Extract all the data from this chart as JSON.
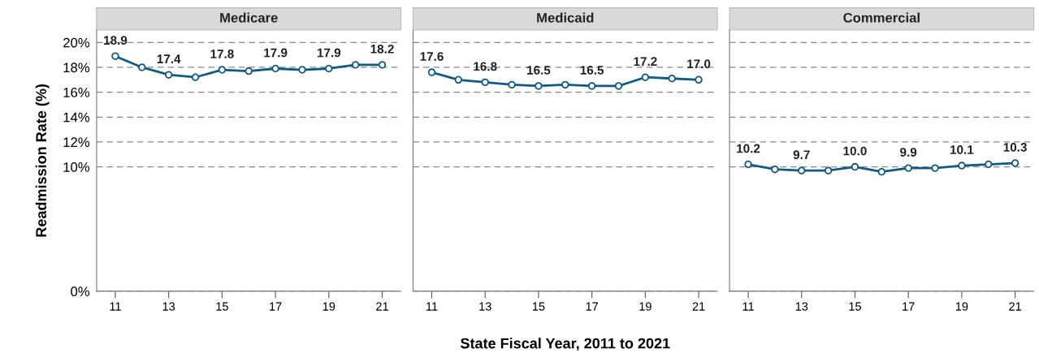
{
  "chart_data": [
    {
      "type": "line",
      "title": "Medicare",
      "ylabel": "Readmission Rate (%)",
      "x": [
        11,
        12,
        13,
        14,
        15,
        16,
        17,
        18,
        19,
        20,
        21
      ],
      "series": [
        {
          "color": "#0f5a87",
          "values": [
            18.9,
            18.0,
            17.4,
            17.2,
            17.8,
            17.7,
            17.9,
            17.8,
            17.9,
            18.2,
            18.2
          ],
          "value_labels": [
            "18.9",
            null,
            "17.4",
            null,
            "17.8",
            null,
            "17.9",
            null,
            "17.9",
            null,
            "18.2"
          ]
        }
      ],
      "xlim": [
        10.3,
        21.7
      ],
      "xticks": [
        11,
        13,
        15,
        17,
        19,
        21
      ],
      "ylim": [
        0,
        21
      ],
      "yticks": [
        {
          "value": 0,
          "label": "0%"
        },
        {
          "value": 10,
          "label": "10%"
        },
        {
          "value": 12,
          "label": "12%"
        },
        {
          "value": 14,
          "label": "14%"
        },
        {
          "value": 16,
          "label": "16%"
        },
        {
          "value": 18,
          "label": "18%"
        },
        {
          "value": 20,
          "label": "20%"
        }
      ],
      "grid": "y",
      "marker": "circle",
      "line_style": "solid",
      "legend": false
    },
    {
      "type": "line",
      "title": "Medicaid",
      "xlabel": "State Fiscal Year, 2011 to 2021",
      "x": [
        11,
        12,
        13,
        14,
        15,
        16,
        17,
        18,
        19,
        20,
        21
      ],
      "series": [
        {
          "color": "#0f5a87",
          "values": [
            17.6,
            17.0,
            16.8,
            16.6,
            16.5,
            16.6,
            16.5,
            16.5,
            17.2,
            17.1,
            17.0
          ],
          "value_labels": [
            "17.6",
            null,
            "16.8",
            null,
            "16.5",
            null,
            "16.5",
            null,
            "17.2",
            null,
            "17.0"
          ]
        }
      ],
      "xlim": [
        10.3,
        21.7
      ],
      "xticks": [
        11,
        13,
        15,
        17,
        19,
        21
      ],
      "ylim": [
        0,
        21
      ],
      "yticks": [
        0,
        10,
        12,
        14,
        16,
        18,
        20
      ],
      "tick_labels": "x",
      "grid": "y",
      "marker": "circle",
      "line_style": "solid",
      "legend": false
    },
    {
      "type": "line",
      "title": "Commercial",
      "x": [
        11,
        12,
        13,
        14,
        15,
        16,
        17,
        18,
        19,
        20,
        21
      ],
      "series": [
        {
          "color": "#0f5a87",
          "values": [
            10.2,
            9.8,
            9.7,
            9.7,
            10.0,
            9.6,
            9.9,
            9.9,
            10.1,
            10.2,
            10.3
          ],
          "value_labels": [
            "10.2",
            null,
            "9.7",
            null,
            "10.0",
            null,
            "9.9",
            null,
            "10.1",
            null,
            "10.3"
          ]
        }
      ],
      "xlim": [
        10.3,
        21.7
      ],
      "xticks": [
        11,
        13,
        15,
        17,
        19,
        21
      ],
      "ylim": [
        0,
        21
      ],
      "yticks": [
        0,
        10,
        12,
        14,
        16,
        18,
        20
      ],
      "tick_labels": "x",
      "grid": "y",
      "marker": "circle",
      "line_style": "solid",
      "legend": false
    }
  ]
}
